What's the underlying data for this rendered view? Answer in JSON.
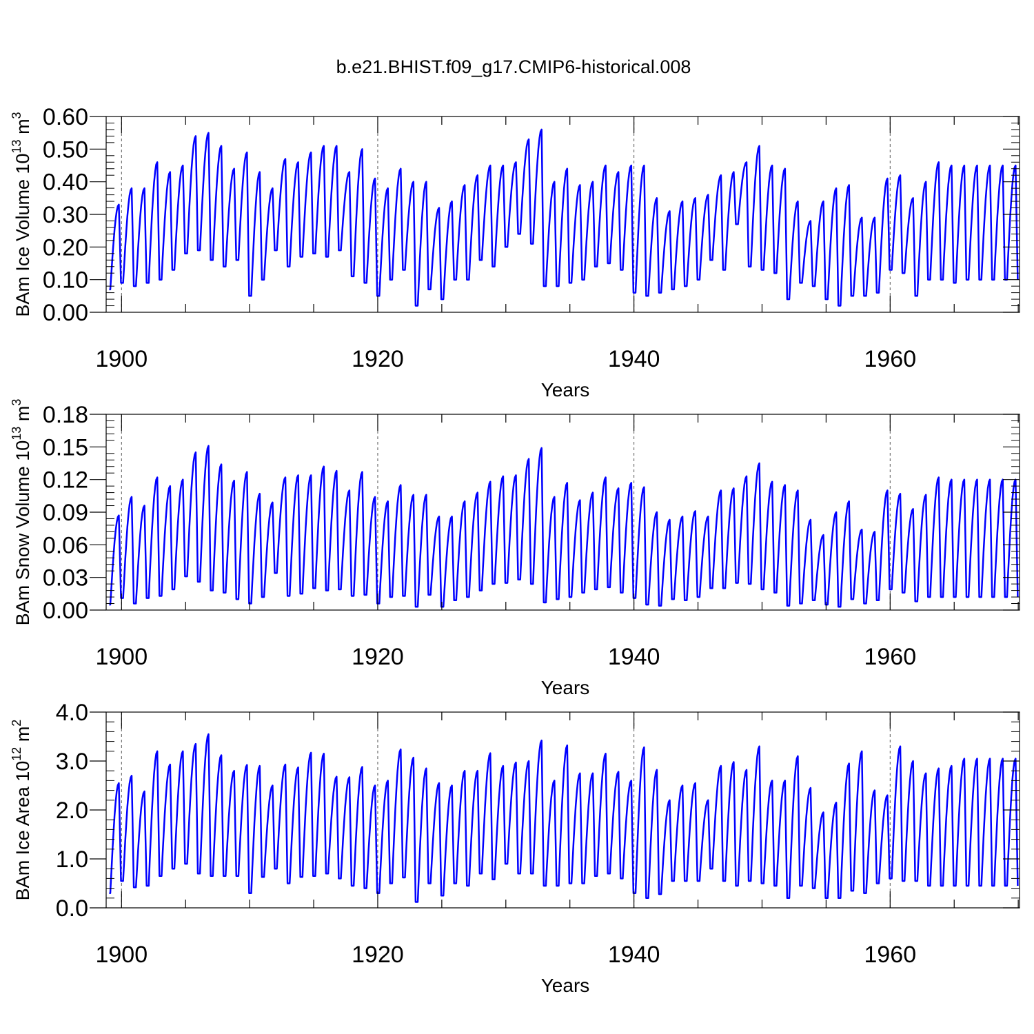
{
  "title": "b.e21.BHIST.f09_g17.CMIP6-historical.008",
  "chart_data": [
    {
      "type": "line",
      "ylabel": "BAm Ice Volume 10",
      "ylabel_exp": "13",
      "ylabel_unit": " m",
      "ylabel_unit_exp": "3",
      "xlabel": "Years",
      "xlim": [
        1898.8,
        1970.1
      ],
      "ylim": [
        0,
        0.6
      ],
      "xticks": [
        1900,
        1920,
        1940,
        1960
      ],
      "xtick_labels": [
        "1900",
        "1920",
        "1940",
        "1960"
      ],
      "yticks": [
        0,
        0.1,
        0.2,
        0.3,
        0.4,
        0.5,
        0.6
      ],
      "ytick_labels": [
        "0.00",
        "0.10",
        "0.20",
        "0.30",
        "0.40",
        "0.50",
        "0.60"
      ],
      "line_color": "#0000ff",
      "series_name": "BAm Ice Volume",
      "year_start": 1899,
      "max": [
        0.33,
        0.38,
        0.38,
        0.46,
        0.43,
        0.45,
        0.54,
        0.55,
        0.51,
        0.44,
        0.49,
        0.43,
        0.38,
        0.47,
        0.46,
        0.49,
        0.51,
        0.51,
        0.43,
        0.5,
        0.41,
        0.38,
        0.44,
        0.4,
        0.4,
        0.32,
        0.34,
        0.39,
        0.42,
        0.45,
        0.45,
        0.46,
        0.53,
        0.56,
        0.4,
        0.44,
        0.39,
        0.4,
        0.45,
        0.43,
        0.45,
        0.45,
        0.35,
        0.31,
        0.34,
        0.35,
        0.36,
        0.42,
        0.43,
        0.46,
        0.51,
        0.45,
        0.44,
        0.34,
        0.28,
        0.34,
        0.38,
        0.39,
        0.29,
        0.29,
        0.41,
        0.42,
        0.35,
        0.4,
        0.46,
        0.45,
        0.45,
        0.45,
        0.45,
        0.45,
        0.45
      ],
      "min": [
        0.07,
        0.09,
        0.08,
        0.09,
        0.1,
        0.13,
        0.18,
        0.19,
        0.16,
        0.14,
        0.16,
        0.05,
        0.1,
        0.19,
        0.14,
        0.17,
        0.18,
        0.17,
        0.19,
        0.11,
        0.09,
        0.05,
        0.1,
        0.13,
        0.02,
        0.07,
        0.04,
        0.1,
        0.1,
        0.16,
        0.14,
        0.2,
        0.24,
        0.21,
        0.08,
        0.08,
        0.09,
        0.1,
        0.14,
        0.15,
        0.13,
        0.06,
        0.05,
        0.06,
        0.07,
        0.08,
        0.1,
        0.16,
        0.13,
        0.27,
        0.14,
        0.13,
        0.12,
        0.04,
        0.09,
        0.08,
        0.04,
        0.02,
        0.05,
        0.05,
        0.06,
        0.13,
        0.12,
        0.05,
        0.1,
        0.1,
        0.09,
        0.1,
        0.1,
        0.1,
        0.1
      ]
    },
    {
      "type": "line",
      "ylabel": "BAm Snow Volume 10",
      "ylabel_exp": "13",
      "ylabel_unit": " m",
      "ylabel_unit_exp": "3",
      "xlabel": "Years",
      "xlim": [
        1898.8,
        1970.1
      ],
      "ylim": [
        0,
        0.18
      ],
      "xticks": [
        1900,
        1920,
        1940,
        1960
      ],
      "xtick_labels": [
        "1900",
        "1920",
        "1940",
        "1960"
      ],
      "yticks": [
        0,
        0.03,
        0.06,
        0.09,
        0.12,
        0.15,
        0.18
      ],
      "ytick_labels": [
        "0.00",
        "0.03",
        "0.06",
        "0.09",
        "0.12",
        "0.15",
        "0.18"
      ],
      "line_color": "#0000ff",
      "series_name": "BAm Snow Volume",
      "year_start": 1899,
      "max": [
        0.087,
        0.104,
        0.096,
        0.122,
        0.114,
        0.12,
        0.145,
        0.151,
        0.134,
        0.119,
        0.127,
        0.107,
        0.099,
        0.122,
        0.124,
        0.124,
        0.132,
        0.128,
        0.11,
        0.127,
        0.104,
        0.1,
        0.115,
        0.106,
        0.106,
        0.086,
        0.086,
        0.1,
        0.108,
        0.118,
        0.123,
        0.124,
        0.139,
        0.149,
        0.104,
        0.117,
        0.101,
        0.108,
        0.122,
        0.112,
        0.117,
        0.113,
        0.09,
        0.083,
        0.086,
        0.091,
        0.086,
        0.11,
        0.112,
        0.123,
        0.135,
        0.118,
        0.115,
        0.11,
        0.083,
        0.069,
        0.09,
        0.1,
        0.074,
        0.072,
        0.11,
        0.107,
        0.093,
        0.106,
        0.122,
        0.12,
        0.12,
        0.12,
        0.12,
        0.12,
        0.12
      ],
      "min": [
        0.005,
        0.011,
        0.006,
        0.011,
        0.013,
        0.019,
        0.031,
        0.026,
        0.018,
        0.016,
        0.01,
        0.006,
        0.012,
        0.034,
        0.013,
        0.015,
        0.02,
        0.018,
        0.019,
        0.013,
        0.014,
        0.006,
        0.012,
        0.013,
        0.003,
        0.014,
        0.003,
        0.009,
        0.012,
        0.018,
        0.024,
        0.025,
        0.028,
        0.024,
        0.007,
        0.01,
        0.012,
        0.016,
        0.019,
        0.021,
        0.016,
        0.011,
        0.005,
        0.004,
        0.01,
        0.009,
        0.012,
        0.02,
        0.02,
        0.025,
        0.024,
        0.019,
        0.016,
        0.004,
        0.006,
        0.009,
        0.005,
        0.003,
        0.01,
        0.006,
        0.009,
        0.019,
        0.016,
        0.008,
        0.012,
        0.012,
        0.012,
        0.012,
        0.012,
        0.012,
        0.012
      ]
    },
    {
      "type": "line",
      "ylabel": "BAm Ice Area 10",
      "ylabel_exp": "12",
      "ylabel_unit": " m",
      "ylabel_unit_exp": "2",
      "xlabel": "Years",
      "xlim": [
        1898.8,
        1970.1
      ],
      "ylim": [
        0,
        4.0
      ],
      "xticks": [
        1900,
        1920,
        1940,
        1960
      ],
      "xtick_labels": [
        "1900",
        "1920",
        "1940",
        "1960"
      ],
      "yticks": [
        0,
        1,
        2,
        3,
        4
      ],
      "ytick_labels": [
        "0.0",
        "1.0",
        "2.0",
        "3.0",
        "4.0"
      ],
      "line_color": "#0000ff",
      "series_name": "BAm Ice Area",
      "year_start": 1899,
      "max": [
        2.55,
        2.7,
        2.38,
        3.2,
        2.93,
        3.2,
        3.35,
        3.55,
        3.12,
        2.8,
        2.92,
        2.9,
        2.5,
        2.93,
        2.87,
        3.17,
        3.15,
        2.68,
        2.67,
        2.88,
        2.5,
        2.6,
        3.24,
        3.07,
        2.85,
        2.55,
        2.5,
        2.8,
        2.8,
        3.16,
        2.9,
        2.97,
        3.0,
        3.42,
        2.6,
        3.32,
        2.75,
        2.75,
        3.15,
        2.78,
        2.6,
        3.28,
        2.82,
        2.2,
        2.5,
        2.55,
        2.2,
        2.9,
        2.98,
        2.82,
        3.3,
        2.6,
        2.6,
        3.1,
        2.45,
        1.95,
        2.15,
        2.95,
        3.2,
        2.4,
        2.3,
        3.3,
        3.0,
        2.75,
        2.85,
        2.9,
        3.05,
        3.05,
        3.05,
        3.05,
        3.05
      ],
      "min": [
        0.3,
        0.55,
        0.42,
        0.45,
        0.65,
        0.8,
        0.9,
        0.7,
        0.65,
        0.65,
        0.65,
        0.3,
        0.63,
        0.8,
        0.5,
        0.63,
        0.65,
        0.7,
        0.6,
        0.45,
        0.4,
        0.3,
        0.5,
        0.62,
        0.12,
        0.5,
        0.25,
        0.5,
        0.45,
        0.7,
        0.58,
        0.9,
        0.7,
        0.7,
        0.45,
        0.45,
        0.5,
        0.5,
        0.65,
        0.7,
        0.6,
        0.3,
        0.2,
        0.28,
        0.55,
        0.55,
        0.55,
        0.8,
        0.55,
        0.45,
        0.55,
        0.5,
        0.45,
        0.2,
        0.45,
        0.4,
        0.2,
        0.2,
        0.35,
        0.3,
        0.5,
        0.6,
        0.55,
        0.55,
        0.45,
        0.45,
        0.45,
        0.45,
        0.45,
        0.45,
        0.45
      ]
    }
  ]
}
